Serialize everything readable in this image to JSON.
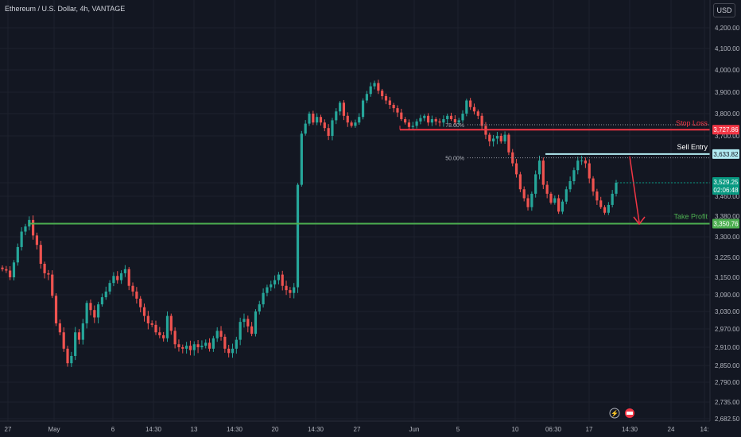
{
  "header": {
    "title": "Ethereum / U.S. Dollar, 4h, VANTAGE",
    "currency": "USD"
  },
  "colors": {
    "background": "#131722",
    "up": "#26a69a",
    "down": "#ef5350",
    "grid": "#1e222d",
    "axis_text": "#b2b5be",
    "stop_loss": "#f23645",
    "sell_entry": "#b2ebf2",
    "take_profit": "#4caf50",
    "current_price": "#089981"
  },
  "chart_data": {
    "type": "candlestick",
    "symbol": "ETH/USD",
    "timeframe": "4h",
    "y_axis": {
      "ticks": [
        "4,200.00",
        "4,100.00",
        "4,000.00",
        "3,900.00",
        "3,800.00",
        "3,700.00",
        "3,529.25",
        "3,460.00",
        "3,380.00",
        "3,300.00",
        "3,225.00",
        "3,150.00",
        "3,090.00",
        "3,030.00",
        "2,970.00",
        "2,910.00",
        "2,850.00",
        "2,790.00",
        "2,735.00",
        "2,682.50"
      ]
    },
    "x_axis": {
      "ticks": [
        "27",
        "May",
        "6",
        "14:30",
        "13",
        "14:30",
        "20",
        "14:30",
        "27",
        "Jun",
        "5",
        "10",
        "06:30",
        "17",
        "14:30",
        "24",
        "14:"
      ]
    },
    "series_close": [
      3180,
      3175,
      3150,
      3205,
      3262,
      3320,
      3340,
      3365,
      3305,
      3270,
      3200,
      3165,
      3160,
      3085,
      2990,
      2960,
      2905,
      2855,
      2880,
      2960,
      2935,
      2990,
      3060,
      3035,
      3010,
      3055,
      3080,
      3100,
      3130,
      3155,
      3140,
      3165,
      3180,
      3120,
      3100,
      3075,
      3045,
      3015,
      2990,
      2985,
      2960,
      2950,
      2940,
      3015,
      2965,
      2920,
      2910,
      2905,
      2915,
      2900,
      2920,
      2910,
      2915,
      2925,
      2905,
      2940,
      2965,
      2945,
      2905,
      2890,
      2905,
      2935,
      2995,
      3005,
      2980,
      2955,
      3030,
      3055,
      3095,
      3115,
      3125,
      3140,
      3160,
      3120,
      3105,
      3095,
      3115,
      3520,
      3710,
      3755,
      3800,
      3760,
      3785,
      3760,
      3735,
      3700,
      3770,
      3810,
      3850,
      3790,
      3760,
      3745,
      3760,
      3785,
      3860,
      3890,
      3925,
      3940,
      3905,
      3880,
      3860,
      3840,
      3825,
      3805,
      3775,
      3760,
      3740,
      3745,
      3765,
      3780,
      3790,
      3760,
      3775,
      3765,
      3760,
      3775,
      3790,
      3775,
      3760,
      3770,
      3800,
      3860,
      3830,
      3810,
      3790,
      3745,
      3705,
      3680,
      3690,
      3700,
      3680,
      3705,
      3640,
      3600,
      3560,
      3500,
      3460,
      3420,
      3480,
      3560,
      3610,
      3520,
      3480,
      3440,
      3460,
      3400,
      3445,
      3500,
      3535,
      3575,
      3610,
      3610,
      3600,
      3545,
      3490,
      3450,
      3420,
      3395,
      3430,
      3480,
      3529.25
    ],
    "annotations": [
      {
        "label": "Stop Loss",
        "price": 3727.86,
        "price_label": "3,727.86"
      },
      {
        "label": "Sell Entry",
        "price": 3633.82,
        "price_label": "3,633.82"
      },
      {
        "label": "Take Profit",
        "price": 3350.76,
        "price_label": "3,350.76"
      }
    ],
    "fib_levels": [
      {
        "label": "78.60%",
        "price": 3750
      },
      {
        "label": "50.00%",
        "price": 3620
      }
    ],
    "current_price": {
      "price": 3529.25,
      "label": "3,529.25",
      "countdown": "02:06:48"
    }
  }
}
